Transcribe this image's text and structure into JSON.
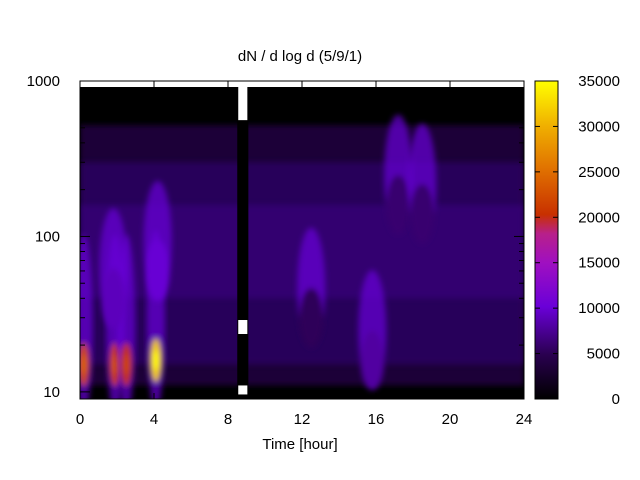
{
  "chart_data": {
    "type": "heatmap",
    "title": "dN / d log d (5/9/1)",
    "xlabel": "Time [hour]",
    "ylabel": "",
    "xlim": [
      0,
      24
    ],
    "ylim": [
      9,
      1000
    ],
    "y_scale": "log",
    "x_ticks": [
      "0",
      "4",
      "8",
      "12",
      "16",
      "20",
      "24"
    ],
    "y_ticks": [
      "10",
      "100",
      "1000"
    ],
    "colorbar": {
      "range": [
        0,
        35000
      ],
      "ticks": [
        "0",
        "5000",
        "10000",
        "15000",
        "20000",
        "25000",
        "30000",
        "35000"
      ],
      "palette": [
        "#000000",
        "#2a0050",
        "#5a00a8",
        "#8a10e8",
        "#b020a0",
        "#c83000",
        "#e07000",
        "#f0b000",
        "#ffff00"
      ]
    },
    "peaks": [
      {
        "time": 0.2,
        "diameter": 15,
        "value": 22000
      },
      {
        "time": 1.9,
        "diameter": 15,
        "value": 21000
      },
      {
        "time": 2.5,
        "diameter": 15,
        "value": 20000
      },
      {
        "time": 4.1,
        "diameter": 16,
        "value": 32000
      },
      {
        "time": 1.8,
        "diameter": 40,
        "value": 9000
      },
      {
        "time": 4.2,
        "diameter": 60,
        "value": 10000
      },
      {
        "time": 15.8,
        "diameter": 16,
        "value": 8000
      },
      {
        "time": 17.2,
        "diameter": 160,
        "value": 6000
      },
      {
        "time": 18.5,
        "diameter": 140,
        "value": 6000
      },
      {
        "time": 12.5,
        "diameter": 30,
        "value": 5000
      }
    ],
    "gap": {
      "start": 8.5,
      "end": 9.1
    },
    "grid": false,
    "legend": "colorbar-right"
  }
}
